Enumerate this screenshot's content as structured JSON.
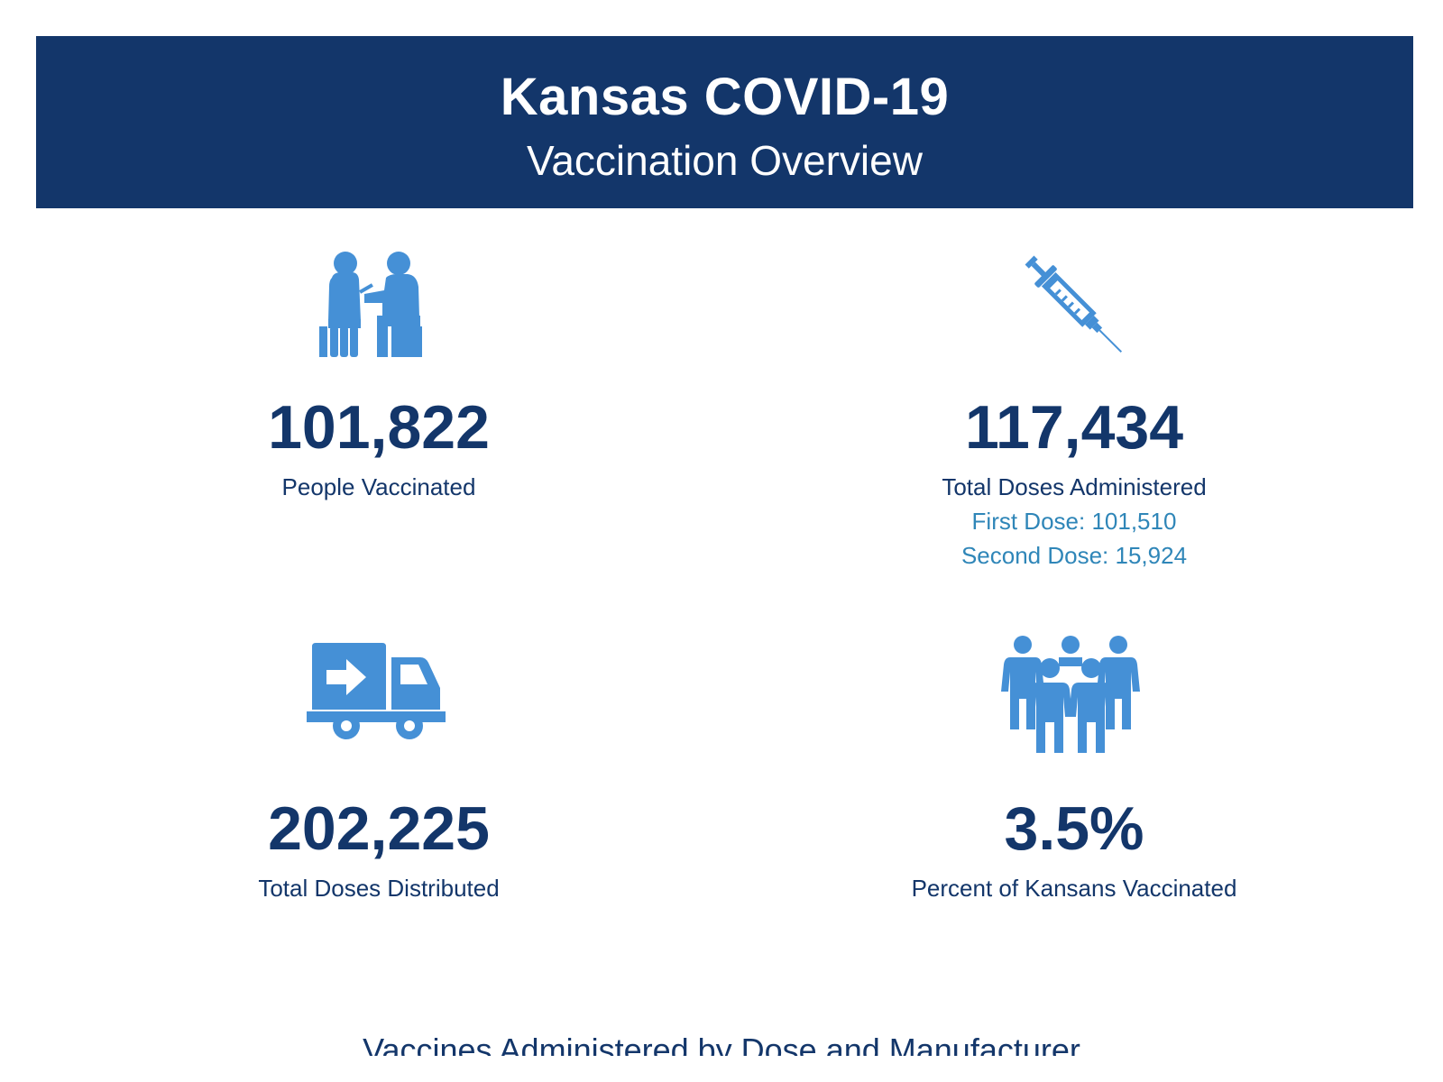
{
  "header": {
    "title": "Kansas COVID-19",
    "subtitle": "Vaccination Overview"
  },
  "colors": {
    "banner": "#13366a",
    "icon": "#4590d6",
    "value": "#13366a",
    "dose_detail": "#2f86b8"
  },
  "stats": {
    "people_vaccinated": {
      "icon": "vaccination-scene-icon",
      "value": "101,822",
      "label": "People Vaccinated"
    },
    "total_doses_administered": {
      "icon": "syringe-icon",
      "value": "117,434",
      "label": "Total Doses Administered",
      "first_dose": "First Dose: 101,510",
      "second_dose": "Second Dose: 15,924"
    },
    "total_doses_distributed": {
      "icon": "delivery-truck-icon",
      "value": "202,225",
      "label": "Total Doses Distributed"
    },
    "percent_vaccinated": {
      "icon": "group-of-people-icon",
      "value": "3.5%",
      "label": "Percent of Kansans Vaccinated"
    }
  },
  "section": {
    "title": "Vaccines Administered by Dose and Manufacturer"
  }
}
